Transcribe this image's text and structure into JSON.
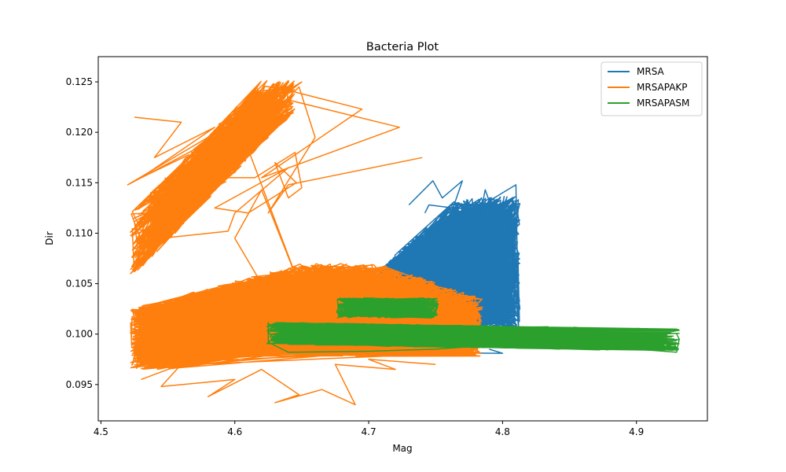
{
  "chart_data": {
    "type": "line",
    "title": "Bacteria Plot",
    "xlabel": "Mag",
    "ylabel": "Dir",
    "xlim": [
      4.498,
      4.953
    ],
    "ylim": [
      0.0914,
      0.1275
    ],
    "x_ticks": [
      "4.5",
      "4.6",
      "4.7",
      "4.8",
      "4.9"
    ],
    "y_ticks": [
      "0.095",
      "0.100",
      "0.105",
      "0.110",
      "0.115",
      "0.120",
      "0.125"
    ],
    "grid": false,
    "legend_position": "top-right",
    "series": [
      {
        "name": "MRSA",
        "color": "#1f77b4",
        "region": {
          "x": [
            4.7,
            4.815
          ],
          "y": [
            0.098,
            0.1148
          ]
        }
      },
      {
        "name": "MRSAPAKP",
        "color": "#ff7f0e",
        "clusters": [
          {
            "x": [
              4.521,
              4.785
            ],
            "y": [
              0.093,
              0.107
            ]
          },
          {
            "x": [
              4.521,
              4.723
            ],
            "y": [
              0.1063,
              0.126
            ]
          }
        ]
      },
      {
        "name": "MRSAPASM",
        "color": "#2ca02c",
        "clusters": [
          {
            "x": [
              4.624,
              4.932
            ],
            "y": [
              0.0982,
              0.101
            ]
          },
          {
            "x": [
              4.675,
              4.752
            ],
            "y": [
              0.1015,
              0.1037
            ]
          }
        ]
      }
    ]
  }
}
